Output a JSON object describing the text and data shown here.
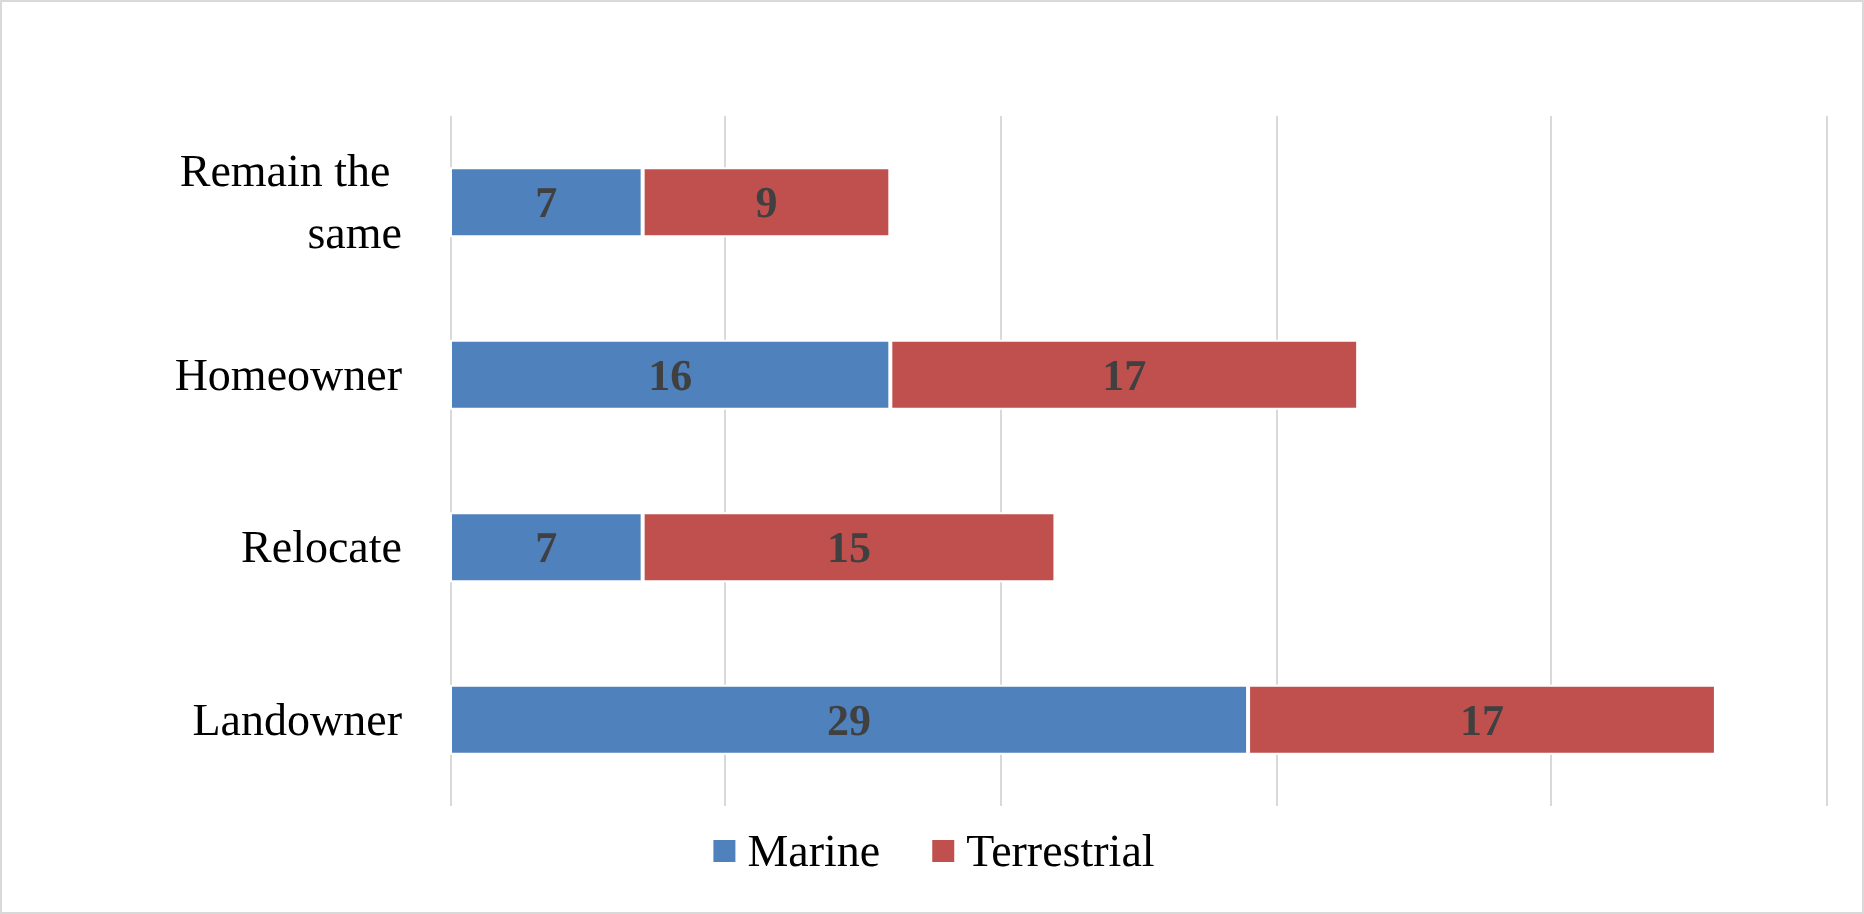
{
  "chart_data": {
    "type": "bar",
    "orientation": "horizontal",
    "stacked": true,
    "data_labels": true,
    "categories": [
      "Remain the same",
      "Homeowner",
      "Relocate",
      "Landowner"
    ],
    "series": [
      {
        "name": "Marine",
        "color": "#4f81bd",
        "values": [
          7,
          16,
          7,
          29
        ]
      },
      {
        "name": "Terrestrial",
        "color": "#c0504d",
        "values": [
          9,
          17,
          15,
          17
        ]
      }
    ],
    "xlim": [
      0,
      50
    ],
    "xticks": [
      {
        "value": 0,
        "label": null
      },
      {
        "value": 10,
        "label": null
      },
      {
        "value": 20,
        "label": null
      },
      {
        "value": 30,
        "label": null
      },
      {
        "value": 40,
        "label": null
      },
      {
        "value": 50,
        "label": null
      }
    ],
    "grid": "x",
    "legend": "bottom",
    "tick_labels": "y"
  }
}
